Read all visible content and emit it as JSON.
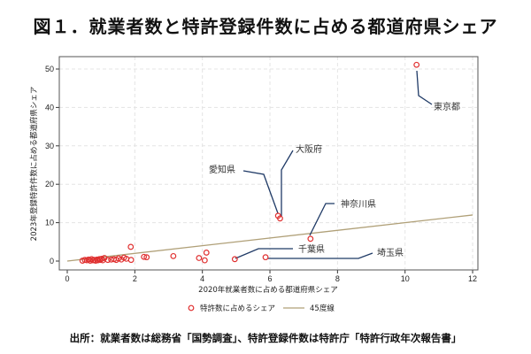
{
  "title": "図１．就業者数と特許登録件数に占める都道府県シェア",
  "source": "出所：就業者数は総務省「国勢調査」、特許登録件数は特許庁「特許行政年次報告書」",
  "chart_data": {
    "type": "scatter",
    "xlabel": "2020年就業者数に占める都道府県シェア",
    "ylabel": "2023年登録特許件数に占める都道府県シェア",
    "xlim": [
      0,
      12
    ],
    "ylim": [
      0,
      52
    ],
    "xticks": [
      "0",
      "2",
      "4",
      "6",
      "8",
      "10",
      "12"
    ],
    "yticks": [
      "0",
      "10",
      "20",
      "30",
      "40",
      "50"
    ],
    "grid": true,
    "legend": {
      "placement": "bottom",
      "entries": [
        "特許数に占めるシェア",
        "45度線"
      ]
    },
    "colors": {
      "points": "#e03030",
      "line45": "#b0a078",
      "leader": "#1f3a66"
    },
    "series": [
      {
        "name": "特許数に占めるシェア",
        "points": [
          [
            0.45,
            0.1
          ],
          [
            0.52,
            0.3
          ],
          [
            0.58,
            0.2
          ],
          [
            0.63,
            0.4
          ],
          [
            0.68,
            0.1
          ],
          [
            0.72,
            0.5
          ],
          [
            0.76,
            0.2
          ],
          [
            0.8,
            0.3
          ],
          [
            0.84,
            0.1
          ],
          [
            0.88,
            0.4
          ],
          [
            0.91,
            0.2
          ],
          [
            0.95,
            0.5
          ],
          [
            0.98,
            0.3
          ],
          [
            1.02,
            0.6
          ],
          [
            1.05,
            0.2
          ],
          [
            1.1,
            0.8
          ],
          [
            1.2,
            0.3
          ],
          [
            1.3,
            0.4
          ],
          [
            1.38,
            0.5
          ],
          [
            1.45,
            0.3
          ],
          [
            1.52,
            0.7
          ],
          [
            1.6,
            0.4
          ],
          [
            1.68,
            0.9
          ],
          [
            1.75,
            0.6
          ],
          [
            1.88,
            3.7
          ],
          [
            1.89,
            0.3
          ],
          [
            2.27,
            1.1
          ],
          [
            2.35,
            1.0
          ],
          [
            3.14,
            1.3
          ],
          [
            3.9,
            0.8
          ],
          [
            4.07,
            0.2
          ],
          [
            4.12,
            2.2
          ],
          [
            4.96,
            0.5
          ],
          [
            5.87,
            1.0
          ],
          [
            6.24,
            11.8
          ],
          [
            6.3,
            11.1
          ],
          [
            7.2,
            5.8
          ],
          [
            10.34,
            51.1
          ]
        ]
      },
      {
        "name": "45度線",
        "points": [
          [
            0,
            0
          ],
          [
            12,
            12
          ]
        ]
      }
    ],
    "annotations": [
      {
        "label": "東京都",
        "point": [
          10.34,
          51.1
        ]
      },
      {
        "label": "大阪府",
        "point": [
          6.3,
          11.1
        ]
      },
      {
        "label": "愛知県",
        "point": [
          6.24,
          11.8
        ]
      },
      {
        "label": "神奈川県",
        "point": [
          7.2,
          5.8
        ]
      },
      {
        "label": "千葉県",
        "point": [
          4.96,
          0.5
        ]
      },
      {
        "label": "埼玉県",
        "point": [
          5.87,
          1.0
        ]
      }
    ]
  }
}
